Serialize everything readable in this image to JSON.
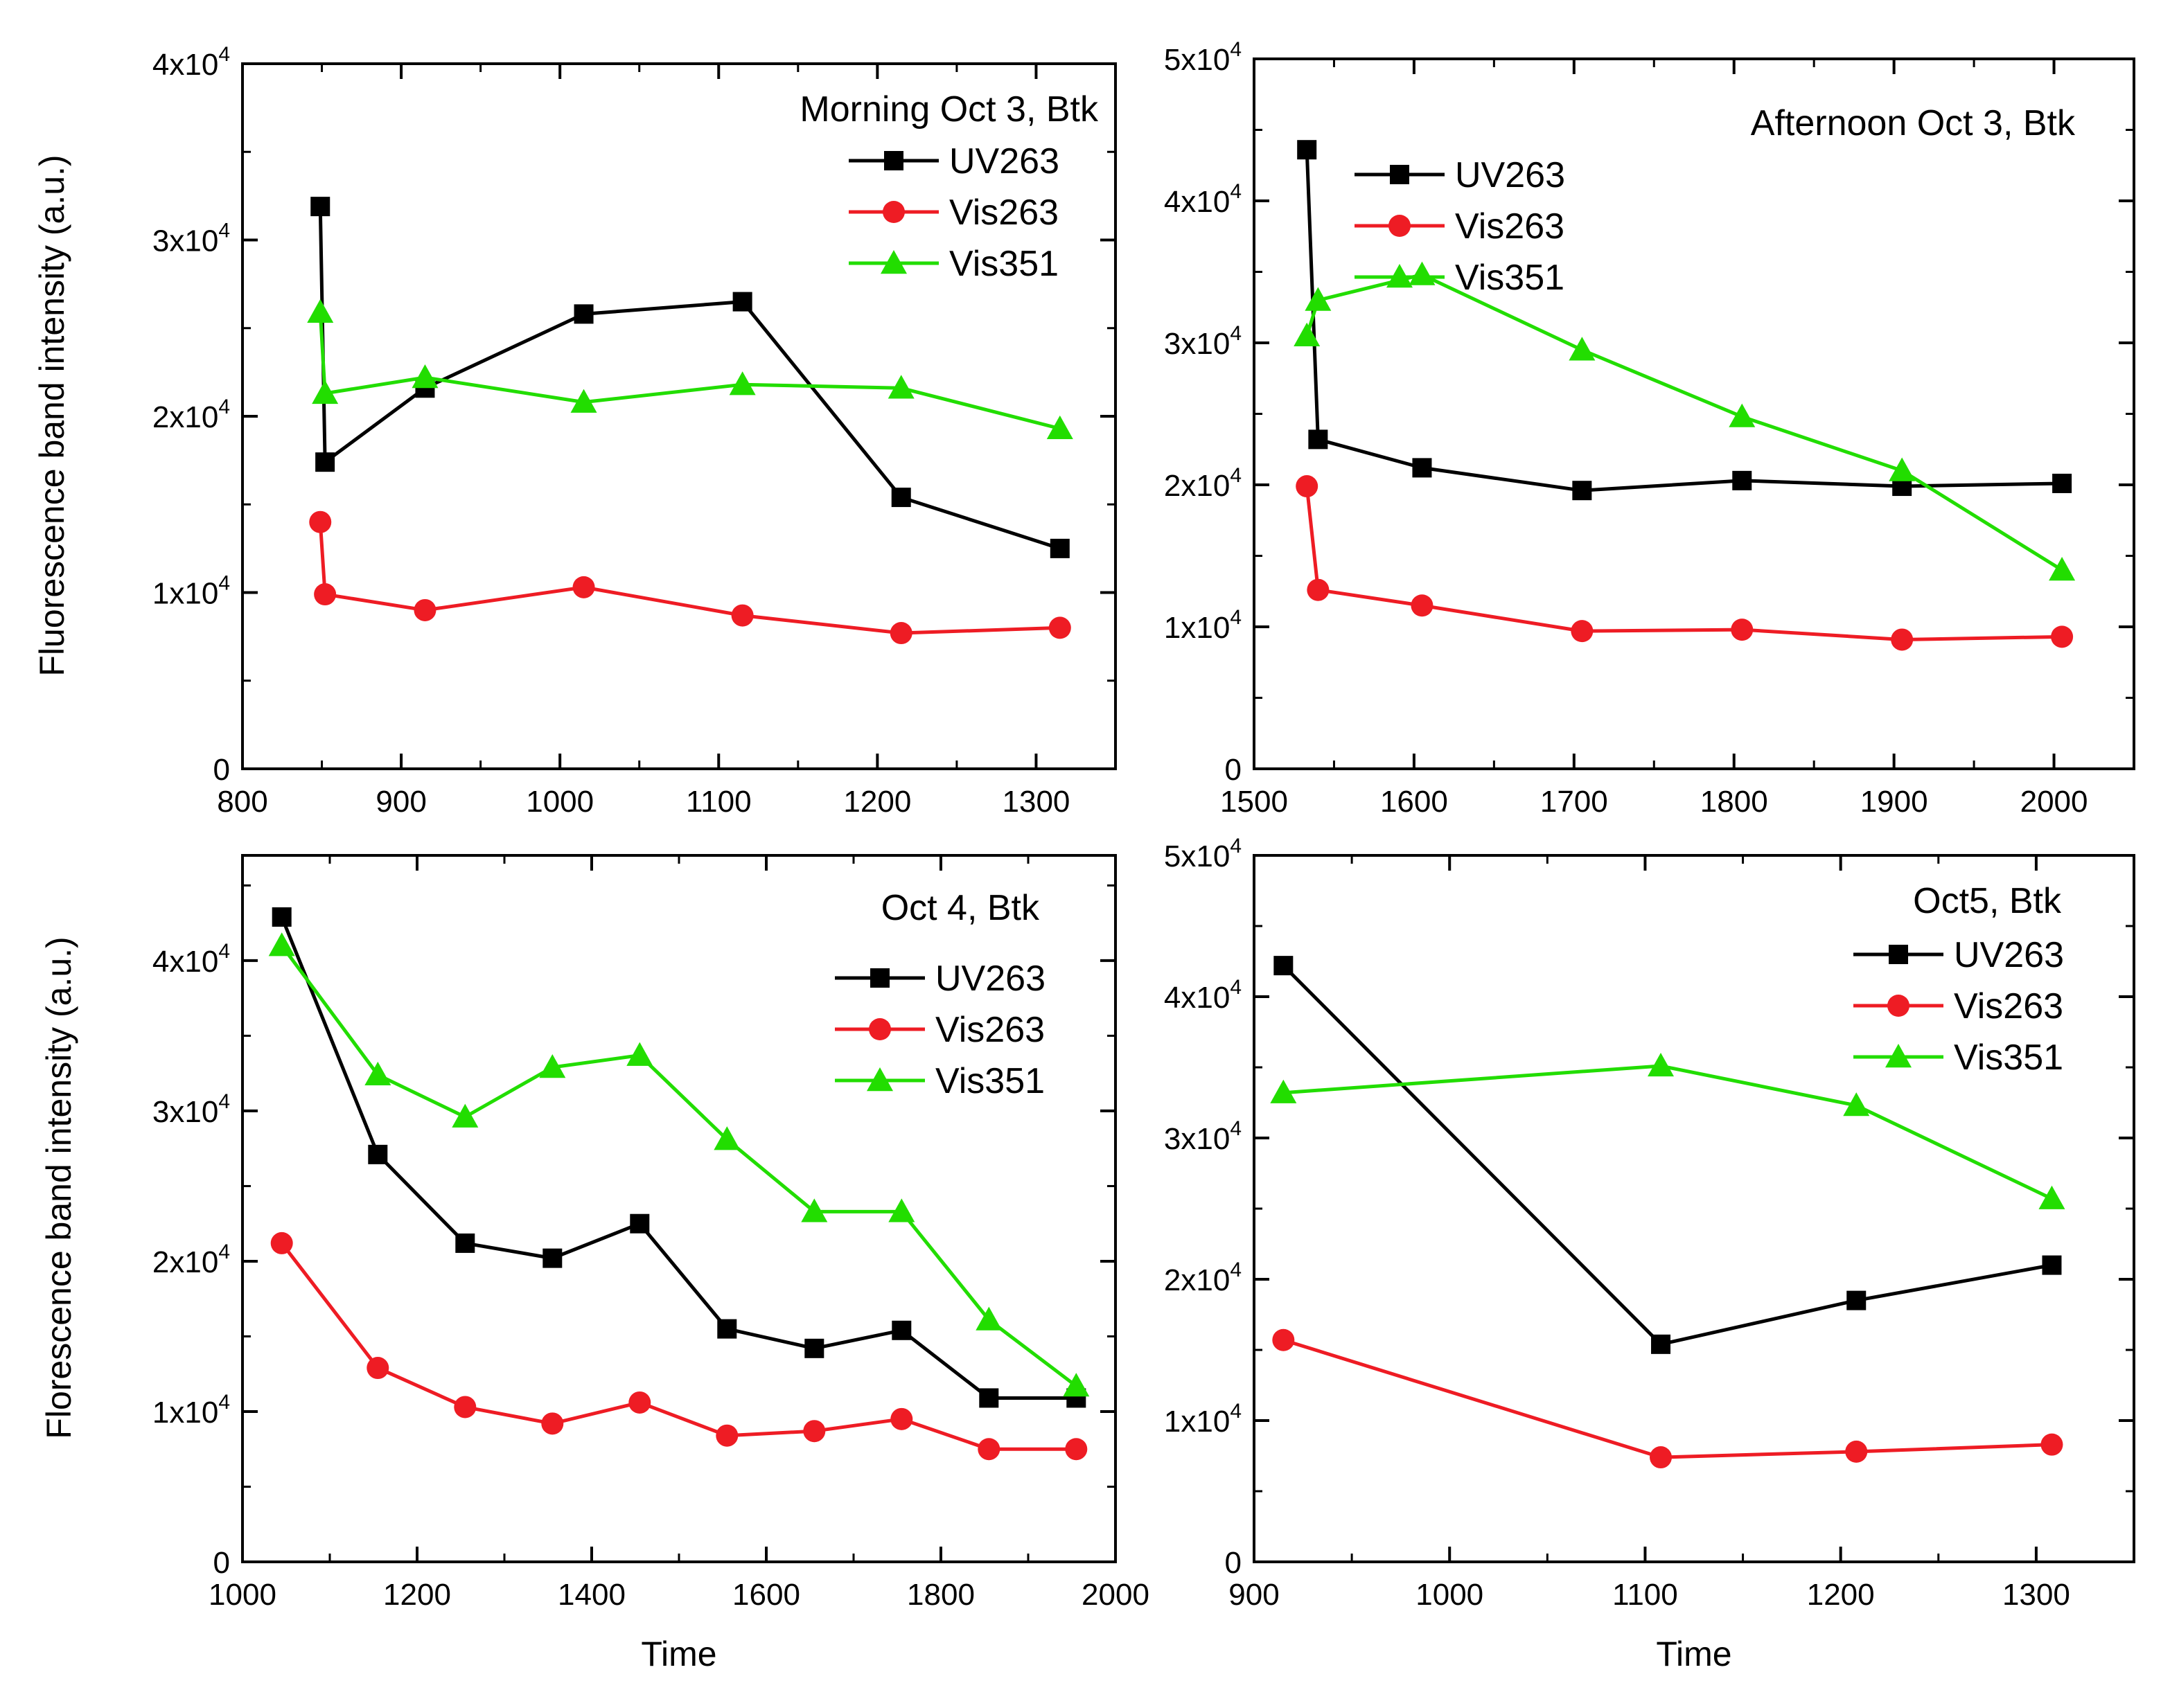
{
  "chart_data": [
    {
      "type": "line",
      "title": "Morning Oct 3, Btk",
      "xlabel": "",
      "ylabel": "Fluorescence band intensity (a.u.)",
      "xlim": [
        800,
        1350
      ],
      "ylim": [
        0,
        40000
      ],
      "x_ticks": [
        800,
        900,
        1000,
        1100,
        1200,
        1300
      ],
      "x_tick_labels": [
        "800",
        "900",
        "1000",
        "1100",
        "1200",
        "1300"
      ],
      "y_ticks": [
        0,
        10000,
        20000,
        30000,
        40000
      ],
      "y_tick_labels": [
        {
          "mant": "0",
          "exp": ""
        },
        {
          "mant": "1x10",
          "exp": "4"
        },
        {
          "mant": "2x10",
          "exp": "4"
        },
        {
          "mant": "3x10",
          "exp": "4"
        },
        {
          "mant": "4x10",
          "exp": "4"
        }
      ],
      "legend_position": "top-right",
      "series": [
        {
          "name": "UV263",
          "color": "#000000",
          "marker": "square",
          "x": [
            849,
            852,
            915,
            1015,
            1115,
            1215,
            1315
          ],
          "y": [
            31900,
            17400,
            21600,
            25800,
            26500,
            15400,
            12500
          ]
        },
        {
          "name": "Vis263",
          "color": "#ee1c24",
          "marker": "circle",
          "x": [
            849,
            852,
            915,
            1015,
            1115,
            1215,
            1315
          ],
          "y": [
            14000,
            9900,
            9000,
            10300,
            8700,
            7700,
            8000
          ]
        },
        {
          "name": "Vis351",
          "color": "#22dd00",
          "marker": "triangle",
          "x": [
            849,
            852,
            915,
            1015,
            1115,
            1215,
            1315
          ],
          "y": [
            25900,
            21300,
            22200,
            20800,
            21800,
            21600,
            19300
          ]
        }
      ]
    },
    {
      "type": "line",
      "title": "Afternoon Oct 3, Btk",
      "xlabel": "",
      "ylabel": "",
      "xlim": [
        1500,
        2050
      ],
      "ylim": [
        0,
        50000
      ],
      "x_ticks": [
        1500,
        1600,
        1700,
        1800,
        1900,
        2000
      ],
      "x_tick_labels": [
        "1500",
        "1600",
        "1700",
        "1800",
        "1900",
        "2000"
      ],
      "y_ticks": [
        0,
        10000,
        20000,
        30000,
        40000,
        50000
      ],
      "y_tick_labels": [
        {
          "mant": "0",
          "exp": ""
        },
        {
          "mant": "1x10",
          "exp": "4"
        },
        {
          "mant": "2x10",
          "exp": "4"
        },
        {
          "mant": "3x10",
          "exp": "4"
        },
        {
          "mant": "4x10",
          "exp": "4"
        },
        {
          "mant": "5x10",
          "exp": "4"
        }
      ],
      "legend_position": "top-right",
      "series": [
        {
          "name": "UV263",
          "color": "#000000",
          "marker": "square",
          "x": [
            1533,
            1540,
            1605,
            1705,
            1805,
            1905,
            2005
          ],
          "y": [
            43600,
            23200,
            21200,
            19600,
            20300,
            19900,
            20100
          ]
        },
        {
          "name": "Vis263",
          "color": "#ee1c24",
          "marker": "circle",
          "x": [
            1533,
            1540,
            1605,
            1705,
            1805,
            1905,
            2005
          ],
          "y": [
            19900,
            12600,
            11500,
            9700,
            9800,
            9100,
            9300
          ]
        },
        {
          "name": "Vis351",
          "color": "#22dd00",
          "marker": "triangle",
          "x": [
            1533,
            1540,
            1605,
            1705,
            1805,
            1905,
            2005
          ],
          "y": [
            30500,
            33000,
            34800,
            29500,
            24800,
            21000,
            14000
          ]
        }
      ]
    },
    {
      "type": "line",
      "title": "Oct 4, Btk",
      "xlabel": "Time",
      "ylabel": "Florescence band intensity (a.u.)",
      "xlim": [
        1000,
        2000
      ],
      "ylim": [
        0,
        47000
      ],
      "x_ticks": [
        1000,
        1200,
        1400,
        1600,
        1800,
        2000
      ],
      "x_tick_labels": [
        "1000",
        "1200",
        "1400",
        "1600",
        "1800",
        "2000"
      ],
      "y_ticks": [
        0,
        10000,
        20000,
        30000,
        40000
      ],
      "y_tick_labels": [
        {
          "mant": "0",
          "exp": ""
        },
        {
          "mant": "1x10",
          "exp": "4"
        },
        {
          "mant": "2x10",
          "exp": "4"
        },
        {
          "mant": "3x10",
          "exp": "4"
        },
        {
          "mant": "4x10",
          "exp": "4"
        }
      ],
      "legend_position": "top-right",
      "series": [
        {
          "name": "UV263",
          "color": "#000000",
          "marker": "square",
          "x": [
            1045,
            1155,
            1255,
            1355,
            1455,
            1555,
            1655,
            1755,
            1855,
            1955
          ],
          "y": [
            42900,
            27100,
            21200,
            20200,
            22500,
            15500,
            14200,
            15400,
            10900,
            10900
          ]
        },
        {
          "name": "Vis263",
          "color": "#ee1c24",
          "marker": "circle",
          "x": [
            1045,
            1155,
            1255,
            1355,
            1455,
            1555,
            1655,
            1755,
            1855,
            1955
          ],
          "y": [
            21200,
            12900,
            10300,
            9200,
            10600,
            8400,
            8700,
            9500,
            7500,
            7500
          ]
        },
        {
          "name": "Vis351",
          "color": "#22dd00",
          "marker": "triangle",
          "x": [
            1045,
            1155,
            1255,
            1355,
            1455,
            1555,
            1655,
            1755,
            1855,
            1955
          ],
          "y": [
            41000,
            32400,
            29600,
            32900,
            33700,
            28100,
            23300,
            23300,
            16100,
            11700
          ]
        }
      ]
    },
    {
      "type": "line",
      "title": "Oct5, Btk",
      "xlabel": "Time",
      "ylabel": "",
      "xlim": [
        900,
        1350
      ],
      "ylim": [
        0,
        50000
      ],
      "x_ticks": [
        900,
        1000,
        1100,
        1200,
        1300
      ],
      "x_tick_labels": [
        "900",
        "1000",
        "1100",
        "1200",
        "1300"
      ],
      "y_ticks": [
        0,
        10000,
        20000,
        30000,
        40000,
        50000
      ],
      "y_tick_labels": [
        {
          "mant": "0",
          "exp": ""
        },
        {
          "mant": "1x10",
          "exp": "4"
        },
        {
          "mant": "2x10",
          "exp": "4"
        },
        {
          "mant": "3x10",
          "exp": "4"
        },
        {
          "mant": "4x10",
          "exp": "4"
        },
        {
          "mant": "5x10",
          "exp": "4"
        }
      ],
      "legend_position": "top-right",
      "series": [
        {
          "name": "UV263",
          "color": "#000000",
          "marker": "square",
          "x": [
            915,
            1108,
            1208,
            1308
          ],
          "y": [
            42200,
            15400,
            18500,
            21000
          ]
        },
        {
          "name": "Vis263",
          "color": "#ee1c24",
          "marker": "circle",
          "x": [
            915,
            1108,
            1208,
            1308
          ],
          "y": [
            15700,
            7400,
            7800,
            8300
          ]
        },
        {
          "name": "Vis351",
          "color": "#22dd00",
          "marker": "triangle",
          "x": [
            915,
            1108,
            1208,
            1308
          ],
          "y": [
            33200,
            35100,
            32300,
            25700
          ]
        }
      ]
    }
  ]
}
